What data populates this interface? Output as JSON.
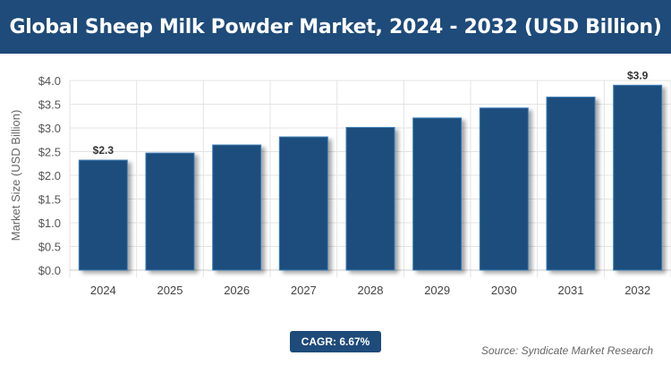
{
  "chart_data": {
    "type": "bar",
    "title": "Global Sheep Milk Powder Market, 2024 - 2032 (USD Billion)",
    "xlabel": "",
    "ylabel": "Market Size (USD Billion)",
    "categories": [
      "2024",
      "2025",
      "2026",
      "2027",
      "2028",
      "2029",
      "2030",
      "2031",
      "2032"
    ],
    "values": [
      2.32,
      2.47,
      2.64,
      2.81,
      3.01,
      3.21,
      3.42,
      3.65,
      3.9
    ],
    "data_labels": {
      "2024": "$2.3",
      "2032": "$3.9"
    },
    "ylim": [
      0,
      4.0
    ],
    "yticks": [
      "$0.0",
      "$0.5",
      "$1.0",
      "$1.5",
      "$2.0",
      "$2.5",
      "$3.0",
      "$3.5",
      "$4.0"
    ],
    "grid": true,
    "bar_color": "#1f4e7d"
  },
  "cagr_label": "CAGR: 6.67%",
  "source": "Source: Syndicate Market Research"
}
